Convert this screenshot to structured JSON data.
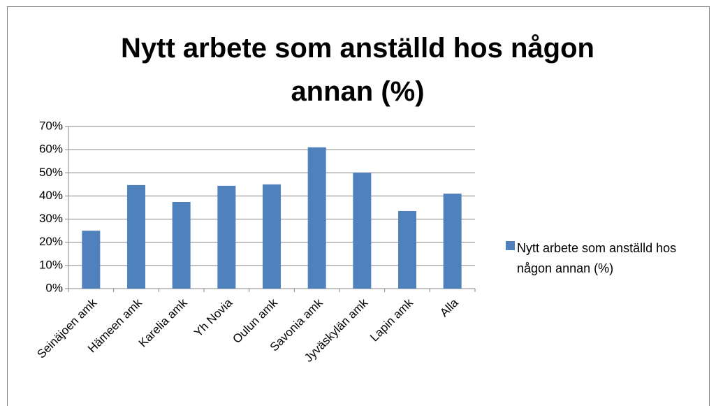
{
  "chart_data": {
    "type": "bar",
    "title": "Nytt arbete som anställd hos någon annan (%)",
    "categories": [
      "Seinäjoen amk",
      "Hämeen amk",
      "Karelia amk",
      "Yh Novia",
      "Oulun amk",
      "Savonia amk",
      "Jyväskylän amk",
      "Lapin amk",
      "Alla"
    ],
    "series": [
      {
        "name": "Nytt arbete som anställd hos någon annan (%)",
        "color": "#4f81bd",
        "values": [
          25,
          44.7,
          37.4,
          44.4,
          45,
          61,
          50,
          33.5,
          41
        ]
      }
    ],
    "ylim": [
      0,
      70
    ],
    "yticks": [
      {
        "value": 0,
        "label": "0%"
      },
      {
        "value": 10,
        "label": "10%"
      },
      {
        "value": 20,
        "label": "20%"
      },
      {
        "value": 30,
        "label": "30%"
      },
      {
        "value": 40,
        "label": "40%"
      },
      {
        "value": 50,
        "label": "50%"
      },
      {
        "value": 60,
        "label": "60%"
      },
      {
        "value": 70,
        "label": "70%"
      }
    ],
    "grid": true,
    "legend": "right"
  }
}
